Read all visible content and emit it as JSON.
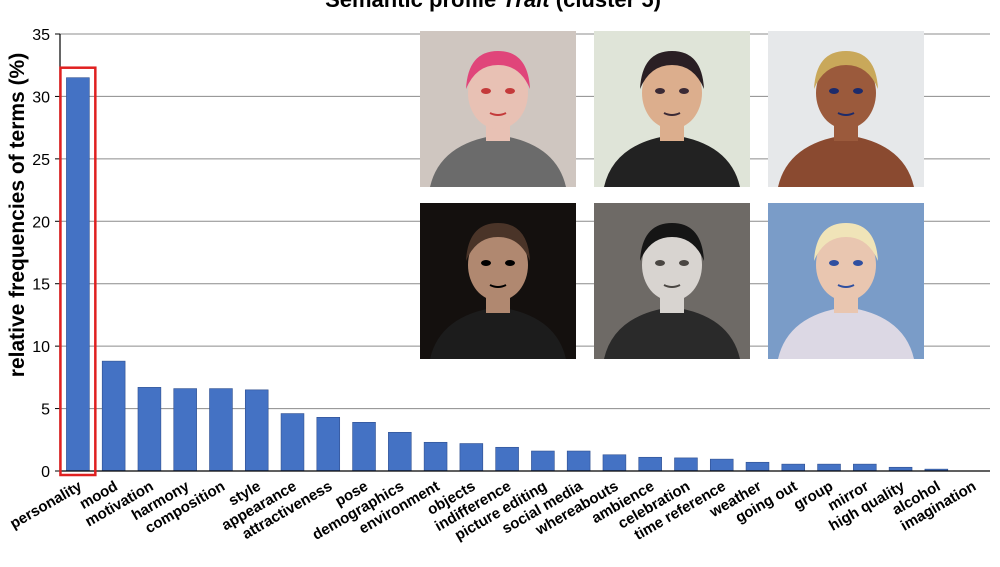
{
  "chart_data": {
    "type": "bar",
    "title_prefix": "Semantic profile ",
    "title_italic": "Trait",
    "title_suffix": " (cluster 5)",
    "ylabel": "relative frequencies of terms (%)",
    "xlabel": "",
    "ylim": [
      0,
      35
    ],
    "yticks": [
      0,
      5,
      10,
      15,
      20,
      25,
      30,
      35
    ],
    "grid": true,
    "categories": [
      "personality",
      "mood",
      "motivation",
      "harmony",
      "composition",
      "style",
      "appearance",
      "attractiveness",
      "pose",
      "demographics",
      "environment",
      "objects",
      "indifference",
      "picture editing",
      "social media",
      "whereabouts",
      "ambience",
      "celebration",
      "time reference",
      "weather",
      "going out",
      "group",
      "mirror",
      "high quality",
      "alcohol",
      "imagination"
    ],
    "values": [
      31.5,
      8.8,
      6.7,
      6.6,
      6.6,
      6.5,
      4.6,
      4.3,
      3.9,
      3.1,
      2.3,
      2.2,
      1.9,
      1.6,
      1.6,
      1.3,
      1.1,
      1.05,
      0.95,
      0.7,
      0.55,
      0.55,
      0.55,
      0.3,
      0.15,
      0.0
    ],
    "highlighted_category": "personality",
    "bar_color": "#4472C4",
    "highlight_color": "#E02020"
  },
  "photos": [
    {
      "name": "photo-pink-hair-lips-shirt",
      "bg": "#cfc6c0",
      "skin": "#e8c1b4",
      "hair": "#e0457a",
      "cloth": "#6b6b6b",
      "accent": "#c43a3a"
    },
    {
      "name": "photo-hat-tanktop",
      "bg": "#dfe4d8",
      "skin": "#dcae8d",
      "hair": "#2a1f24",
      "cloth": "#222222",
      "accent": "#3b2a35"
    },
    {
      "name": "photo-sunglasses-braids",
      "bg": "#e6e8ea",
      "skin": "#9b5a3c",
      "hair": "#c9a85a",
      "cloth": "#8a4a30",
      "accent": "#1d2b6b"
    },
    {
      "name": "photo-dark-portrait-man",
      "bg": "#14100e",
      "skin": "#b08870",
      "hair": "#4a3428",
      "cloth": "#1c1c1c",
      "accent": "#000000"
    },
    {
      "name": "photo-bookshelf-woman",
      "bg": "#6e6a66",
      "skin": "#d8d4d0",
      "hair": "#151515",
      "cloth": "#2a2a2a",
      "accent": "#4a4642"
    },
    {
      "name": "photo-veil-blue-makeup",
      "bg": "#7a9cc8",
      "skin": "#e9c6b0",
      "hair": "#f0e4b8",
      "cloth": "#dcd8e4",
      "accent": "#2f4fa0"
    }
  ]
}
